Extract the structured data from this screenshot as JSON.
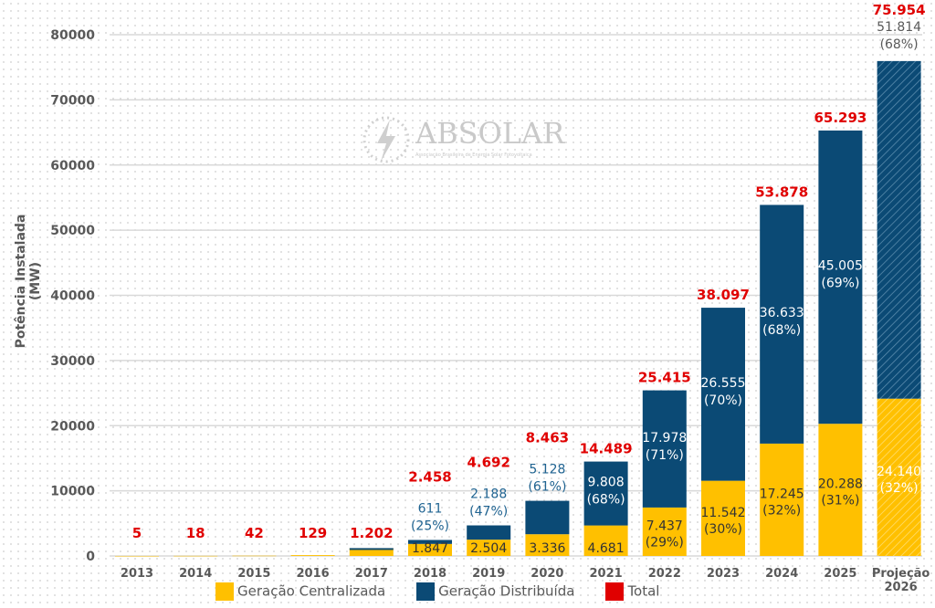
{
  "chart_data": {
    "type": "bar",
    "stacked": true,
    "ylabel": "Potência Instalada (MW)",
    "ylim": [
      0,
      80000
    ],
    "yticks": [
      0,
      10000,
      20000,
      30000,
      40000,
      50000,
      60000,
      70000,
      80000
    ],
    "grid": true,
    "legend_position": "bottom",
    "categories": [
      "2013",
      "2014",
      "2015",
      "2016",
      "2017",
      "2018",
      "2019",
      "2020",
      "2021",
      "2022",
      "2023",
      "2024",
      "2025",
      "Projeção 2026"
    ],
    "series": [
      {
        "name": "Geração Centralizada",
        "color": "#ffc000",
        "values": [
          null,
          null,
          null,
          null,
          null,
          1847,
          2504,
          3336,
          4681,
          7437,
          11542,
          17245,
          20288,
          24140
        ],
        "percent": [
          null,
          null,
          null,
          null,
          null,
          null,
          null,
          null,
          null,
          29,
          30,
          32,
          31,
          32
        ]
      },
      {
        "name": "Geração Distribuída",
        "color": "#0b4a75",
        "values": [
          null,
          null,
          null,
          null,
          null,
          611,
          2188,
          5128,
          9808,
          17978,
          26555,
          36633,
          45005,
          51814
        ],
        "percent": [
          null,
          null,
          null,
          null,
          null,
          25,
          47,
          61,
          68,
          71,
          70,
          68,
          69,
          68
        ]
      },
      {
        "name": "Total",
        "color": "#e00000",
        "values": [
          5,
          18,
          42,
          129,
          1202,
          2458,
          4692,
          8463,
          14489,
          25415,
          38097,
          53878,
          65293,
          75954
        ]
      }
    ],
    "projection_hatched": "Projeção 2026"
  },
  "logo": {
    "name": "ABSOLAR",
    "subtitle": "Associação Brasileira de Energia Solar Fotovoltaica"
  }
}
